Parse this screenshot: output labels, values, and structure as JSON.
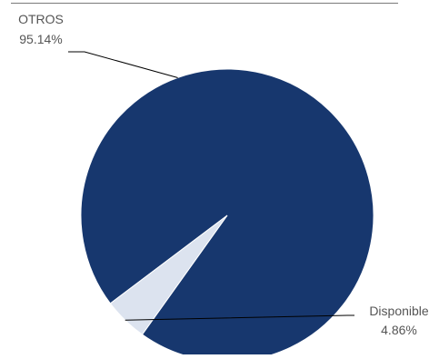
{
  "chart_data": {
    "type": "pie",
    "title": "",
    "slices": [
      {
        "label": "OTROS",
        "value": 95.14,
        "value_label": "95.14%",
        "color": "#17376e"
      },
      {
        "label": "Disponible",
        "value": 4.86,
        "value_label": "4.86%",
        "color": "#dce3ef"
      }
    ],
    "legend": "none",
    "slice_border_color": "#ffffff"
  }
}
